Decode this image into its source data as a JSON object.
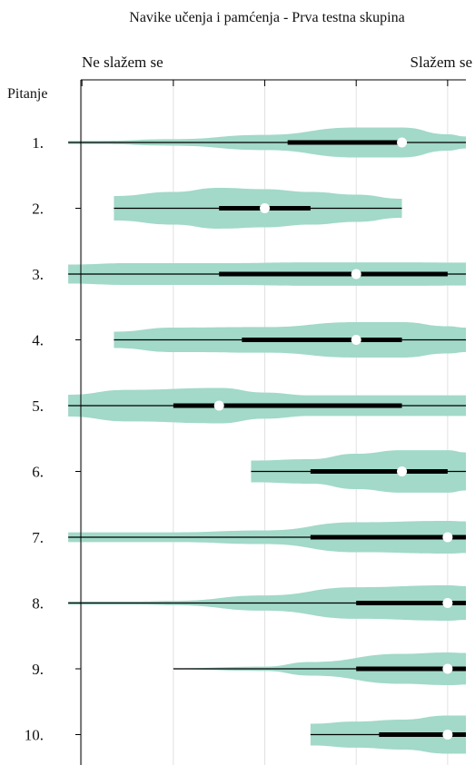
{
  "chart_data": {
    "type": "violin",
    "title": "Navike učenja i pamćenja - Prva testna skupina",
    "xlabel_left": "Ne slažem se",
    "xlabel_right": "Slažem se",
    "ylabel": "Pitanje",
    "xlim": [
      0.7,
      5.2
    ],
    "grid": true,
    "colors": {
      "violin": "#a2d9c9",
      "line": "#000000",
      "median": "#ffffff"
    },
    "categories": [
      "1.",
      "2.",
      "3.",
      "4.",
      "5.",
      "6.",
      "7.",
      "8.",
      "9.",
      "10."
    ],
    "items": [
      {
        "label": "1.",
        "min": 0.85,
        "q1": 3.25,
        "median": 4.5,
        "q3": 4.5,
        "max": 5.2,
        "profile": [
          [
            0.85,
            0.06
          ],
          [
            1.2,
            0.06
          ],
          [
            2.0,
            0.12
          ],
          [
            3.0,
            0.28
          ],
          [
            4.0,
            0.55
          ],
          [
            4.5,
            0.55
          ],
          [
            5.0,
            0.3
          ],
          [
            5.2,
            0.22
          ]
        ]
      },
      {
        "label": "2.",
        "min": 1.35,
        "q1": 2.5,
        "median": 3.0,
        "q3": 3.5,
        "max": 4.5,
        "profile": [
          [
            1.35,
            0.45
          ],
          [
            2.0,
            0.6
          ],
          [
            2.5,
            0.75
          ],
          [
            3.0,
            0.7
          ],
          [
            3.5,
            0.6
          ],
          [
            4.0,
            0.5
          ],
          [
            4.5,
            0.35
          ]
        ]
      },
      {
        "label": "3.",
        "min": 0.85,
        "q1": 2.5,
        "median": 4.0,
        "q3": 5.0,
        "max": 5.2,
        "profile": [
          [
            0.85,
            0.35
          ],
          [
            1.5,
            0.4
          ],
          [
            2.5,
            0.4
          ],
          [
            3.5,
            0.43
          ],
          [
            4.5,
            0.43
          ],
          [
            5.2,
            0.42
          ]
        ]
      },
      {
        "label": "4.",
        "min": 1.35,
        "q1": 2.75,
        "median": 4.0,
        "q3": 4.5,
        "max": 5.2,
        "profile": [
          [
            1.35,
            0.3
          ],
          [
            2.0,
            0.45
          ],
          [
            3.0,
            0.47
          ],
          [
            4.0,
            0.65
          ],
          [
            4.5,
            0.65
          ],
          [
            5.0,
            0.5
          ],
          [
            5.2,
            0.45
          ]
        ]
      },
      {
        "label": "5.",
        "min": 0.85,
        "q1": 2.0,
        "median": 2.5,
        "q3": 4.5,
        "max": 5.2,
        "profile": [
          [
            0.85,
            0.4
          ],
          [
            1.5,
            0.58
          ],
          [
            2.5,
            0.65
          ],
          [
            3.0,
            0.48
          ],
          [
            3.5,
            0.38
          ],
          [
            4.5,
            0.38
          ],
          [
            5.2,
            0.38
          ]
        ]
      },
      {
        "label": "6.",
        "min": 2.85,
        "q1": 3.5,
        "median": 4.5,
        "q3": 5.0,
        "max": 5.2,
        "profile": [
          [
            2.85,
            0.4
          ],
          [
            3.5,
            0.45
          ],
          [
            4.0,
            0.65
          ],
          [
            4.5,
            0.78
          ],
          [
            5.0,
            0.78
          ],
          [
            5.2,
            0.7
          ]
        ]
      },
      {
        "label": "7.",
        "min": 0.85,
        "q1": 3.5,
        "median": 5.0,
        "q3": 5.2,
        "max": 5.2,
        "profile": [
          [
            0.85,
            0.18
          ],
          [
            2.0,
            0.18
          ],
          [
            3.0,
            0.25
          ],
          [
            4.0,
            0.55
          ],
          [
            5.0,
            0.6
          ],
          [
            5.2,
            0.58
          ]
        ]
      },
      {
        "label": "8.",
        "min": 0.85,
        "q1": 4.0,
        "median": 5.0,
        "q3": 5.2,
        "max": 5.2,
        "profile": [
          [
            0.85,
            0.06
          ],
          [
            1.6,
            0.06
          ],
          [
            2.0,
            0.08
          ],
          [
            3.0,
            0.28
          ],
          [
            4.0,
            0.58
          ],
          [
            5.0,
            0.65
          ],
          [
            5.2,
            0.62
          ]
        ]
      },
      {
        "label": "9.",
        "min": 2.0,
        "q1": 4.0,
        "median": 5.0,
        "q3": 5.2,
        "max": 5.2,
        "profile": [
          [
            2.0,
            0.02
          ],
          [
            3.0,
            0.08
          ],
          [
            3.5,
            0.25
          ],
          [
            4.5,
            0.55
          ],
          [
            5.0,
            0.6
          ],
          [
            5.2,
            0.58
          ]
        ]
      },
      {
        "label": "10.",
        "min": 3.5,
        "q1": 4.25,
        "median": 5.0,
        "q3": 5.2,
        "max": 5.2,
        "profile": [
          [
            3.5,
            0.4
          ],
          [
            4.0,
            0.48
          ],
          [
            4.5,
            0.55
          ],
          [
            5.0,
            0.7
          ],
          [
            5.2,
            0.7
          ]
        ]
      }
    ]
  }
}
